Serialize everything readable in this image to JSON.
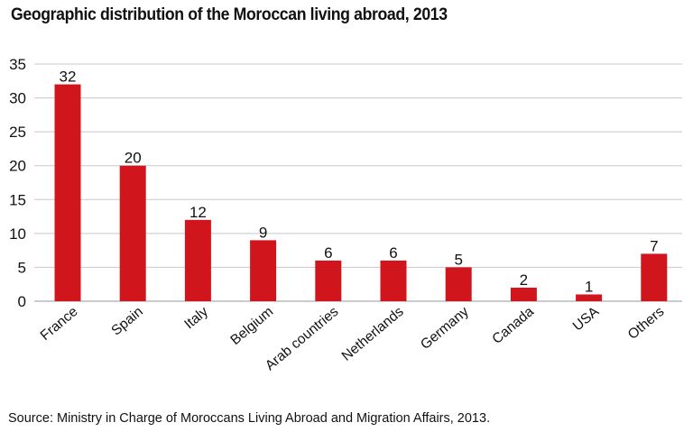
{
  "chart_data": {
    "type": "bar",
    "title": "Geographic distribution of the Moroccan living abroad, 2013",
    "xlabel": "",
    "ylabel": "",
    "categories": [
      "France",
      "Spain",
      "Italy",
      "Belgium",
      "Arab countries",
      "Netherlands",
      "Germany",
      "Canada",
      "USA",
      "Others"
    ],
    "values": [
      32,
      20,
      12,
      9,
      6,
      6,
      5,
      2,
      1,
      7
    ],
    "data_labels": [
      "32",
      "20",
      "12",
      "9",
      "6",
      "6",
      "5",
      "2",
      "1",
      "7"
    ],
    "ylim": [
      0,
      35
    ],
    "yticks": [
      0,
      5,
      10,
      15,
      20,
      25,
      30,
      35
    ],
    "grid": true,
    "legend": "none",
    "colors": {
      "bar": "#d0161c",
      "grid": "#c8c8c8",
      "text": "#111111"
    }
  },
  "source": "Source: Ministry in Charge of Moroccans Living Abroad and Migration Affairs, 2013."
}
